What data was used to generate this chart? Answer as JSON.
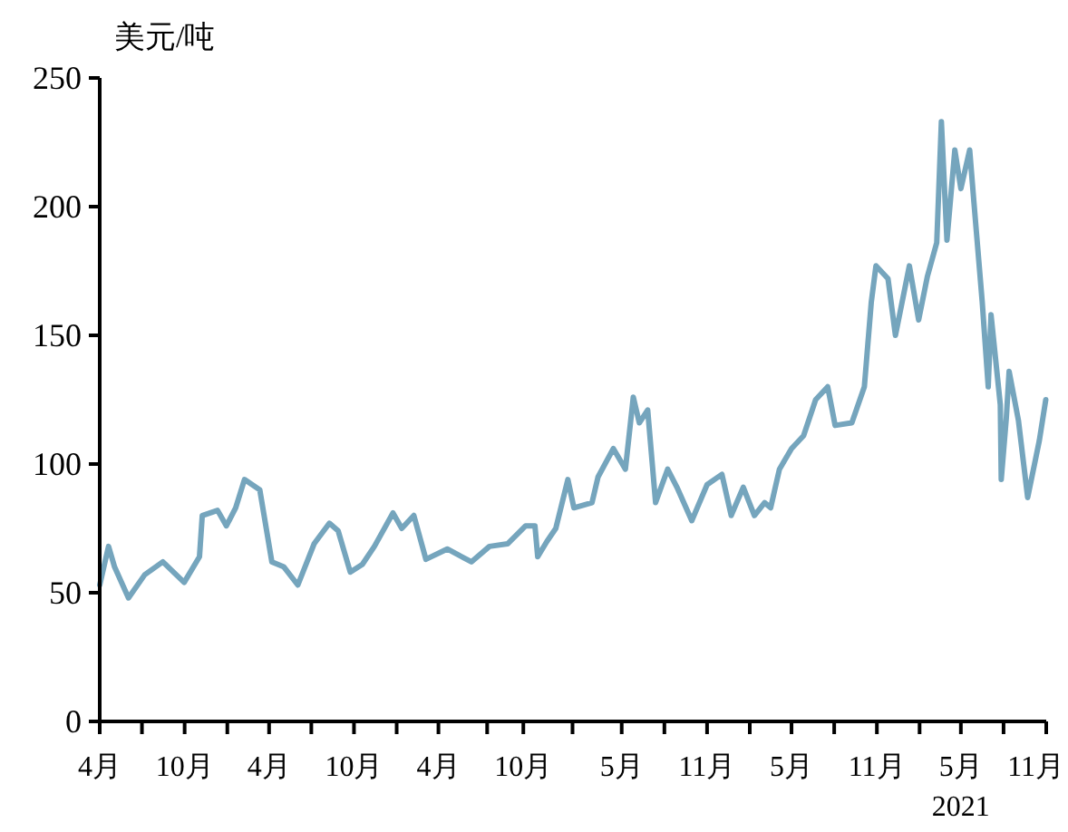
{
  "chart_data": {
    "type": "line",
    "ylabel": "美元/吨",
    "xlim": [
      "2016-04-01",
      "2021-11-01"
    ],
    "ylim": [
      0,
      250
    ],
    "yticks": [
      0,
      50,
      100,
      150,
      200,
      250
    ],
    "xticks": [
      {
        "value": "2016-04-01",
        "label": "4月"
      },
      {
        "value": "2016-07-01",
        "label": null
      },
      {
        "value": "2016-10-01",
        "label": "10月"
      },
      {
        "value": "2017-01-01",
        "label": null
      },
      {
        "value": "2017-04-01",
        "label": "4月"
      },
      {
        "value": "2017-07-01",
        "label": null
      },
      {
        "value": "2017-10-01",
        "label": "10月"
      },
      {
        "value": "2018-01-01",
        "label": null
      },
      {
        "value": "2018-04-01",
        "label": "4月"
      },
      {
        "value": "2018-07-15",
        "label": null
      },
      {
        "value": "2018-10-01",
        "label": "10月"
      },
      {
        "value": "2019-01-15",
        "label": null
      },
      {
        "value": "2019-05-01",
        "label": "5月"
      },
      {
        "value": "2019-08-01",
        "label": null
      },
      {
        "value": "2019-11-01",
        "label": "11月"
      },
      {
        "value": "2020-02-01",
        "label": null
      },
      {
        "value": "2020-05-01",
        "label": "5月"
      },
      {
        "value": "2020-08-01",
        "label": null
      },
      {
        "value": "2020-11-01",
        "label": "11月"
      },
      {
        "value": "2021-02-01",
        "label": null
      },
      {
        "value": "2021-05-01",
        "label": "5月\n2021"
      },
      {
        "value": "2021-08-01",
        "label": null
      },
      {
        "value": "2021-11-01",
        "label": "11月"
      }
    ],
    "grid": false,
    "marker": "none",
    "line_style": "solid",
    "series": [
      {
        "color": "#75a5bd",
        "x": [
          "2016-04-01",
          "2016-04-20",
          "2016-05-03",
          "2016-06-02",
          "2016-07-07",
          "2016-08-15",
          "2016-09-30",
          "2016-11-02",
          "2016-11-08",
          "2016-12-11",
          "2016-12-30",
          "2017-01-19",
          "2017-02-07",
          "2017-03-12",
          "2017-04-07",
          "2017-05-03",
          "2017-06-02",
          "2017-07-07",
          "2017-08-09",
          "2017-08-28",
          "2017-09-23",
          "2017-10-19",
          "2017-11-14",
          "2017-12-24",
          "2018-01-12",
          "2018-02-07",
          "2018-03-05",
          "2018-04-20",
          "2018-06-11",
          "2018-07-20",
          "2018-08-28",
          "2018-10-06",
          "2018-10-26",
          "2018-11-01",
          "2018-11-21",
          "2018-12-10",
          "2019-01-05",
          "2019-01-18",
          "2019-02-26",
          "2019-03-11",
          "2019-04-13",
          "2019-05-09",
          "2019-05-26",
          "2019-06-08",
          "2019-06-26",
          "2019-07-13",
          "2019-08-08",
          "2019-08-28",
          "2019-09-29",
          "2019-11-01",
          "2019-12-03",
          "2019-12-23",
          "2020-01-18",
          "2020-02-11",
          "2020-03-04",
          "2020-03-17",
          "2020-04-05",
          "2020-05-01",
          "2020-05-27",
          "2020-06-22",
          "2020-07-18",
          "2020-08-03",
          "2020-09-08",
          "2020-10-05",
          "2020-10-20",
          "2020-10-30",
          "2020-11-25",
          "2020-12-11",
          "2021-01-10",
          "2021-01-30",
          "2021-02-18",
          "2021-03-10",
          "2021-03-20",
          "2021-04-01",
          "2021-04-18",
          "2021-05-01",
          "2021-05-20",
          "2021-05-29",
          "2021-06-16",
          "2021-06-29",
          "2021-07-05",
          "2021-07-25",
          "2021-07-27",
          "2021-08-07",
          "2021-08-13",
          "2021-09-02",
          "2021-09-22",
          "2021-10-17",
          "2021-10-31"
        ],
        "values": [
          53,
          68,
          60,
          48,
          57,
          62,
          54,
          64,
          80,
          82,
          76,
          83,
          94,
          90,
          62,
          60,
          53,
          69,
          77,
          74,
          58,
          61,
          68,
          81,
          75,
          80,
          63,
          67,
          62,
          68,
          69,
          76,
          76,
          64,
          70,
          75,
          94,
          83,
          85,
          95,
          106,
          98,
          126,
          116,
          121,
          85,
          98,
          91,
          78,
          92,
          96,
          80,
          91,
          80,
          85,
          83,
          98,
          106,
          111,
          125,
          130,
          115,
          116,
          130,
          163,
          177,
          172,
          150,
          177,
          156,
          173,
          186,
          233,
          187,
          222,
          207,
          222,
          202,
          163,
          130,
          158,
          123,
          94,
          118,
          136,
          117,
          87,
          109,
          125
        ]
      }
    ]
  }
}
